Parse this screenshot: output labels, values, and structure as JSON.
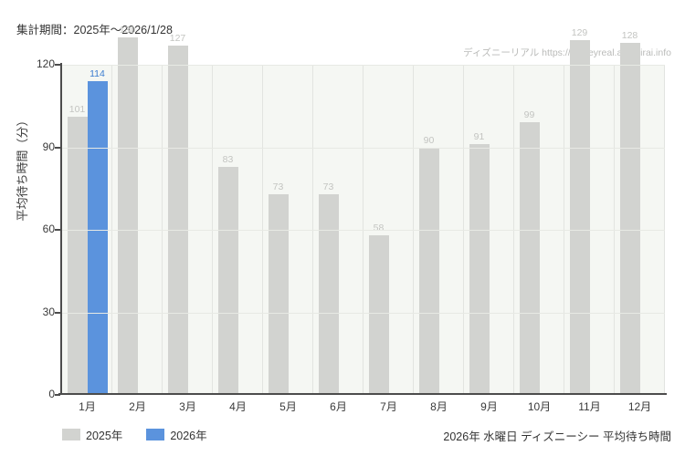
{
  "header": {
    "period_label": "集計期間：2025年～2026/1/28"
  },
  "watermark": {
    "text": "ディズニーリアル https://disneyreal.asumirai.info"
  },
  "chart_data": {
    "type": "bar",
    "title": "",
    "ylabel": "平均待ち時間（分）",
    "xlabel": "",
    "categories": [
      "1月",
      "2月",
      "3月",
      "4月",
      "5月",
      "6月",
      "7月",
      "8月",
      "9月",
      "10月",
      "11月",
      "12月"
    ],
    "series": [
      {
        "name": "2025年",
        "color": "#d2d3d0",
        "label_color": "#c3c4c1",
        "values": [
          101,
          130,
          127,
          83,
          73,
          73,
          58,
          90,
          91,
          99,
          129,
          128
        ]
      },
      {
        "name": "2026年",
        "color": "#5b93dd",
        "label_color": "#3c7dd0",
        "values": [
          114,
          null,
          null,
          null,
          null,
          null,
          null,
          null,
          null,
          null,
          null,
          null
        ]
      }
    ],
    "yticks": [
      0,
      30,
      60,
      90,
      120
    ],
    "ylim": [
      0,
      120
    ],
    "grid": true,
    "legend_position": "bottom-left"
  },
  "footer": {
    "caption": "2026年 水曜日 ディズニーシー 平均待ち時間"
  }
}
